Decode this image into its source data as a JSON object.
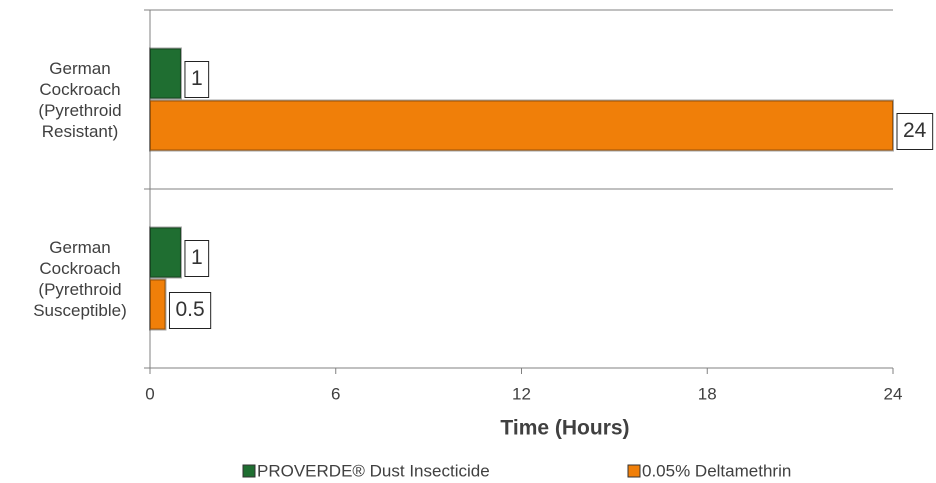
{
  "chart_data": {
    "type": "bar",
    "orientation": "horizontal",
    "categories": [
      "German Cockroach (Pyrethroid Resistant)",
      "German Cockroach (Pyrethroid Susceptible)"
    ],
    "series": [
      {
        "name": "PROVERDE® Dust Insecticide",
        "color": "#1f6e31",
        "values": [
          1,
          1
        ]
      },
      {
        "name": "0.05% Deltamethrin",
        "color": "#f07f09",
        "values": [
          24,
          0.5
        ]
      }
    ],
    "xlabel": "Time (Hours)",
    "xlim": [
      0,
      24
    ],
    "xticks": [
      0,
      6,
      12,
      18,
      24
    ],
    "legend": "bottom"
  }
}
